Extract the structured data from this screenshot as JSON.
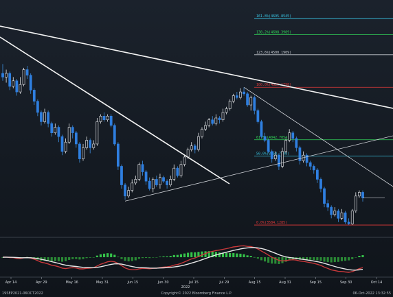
{
  "chart_data": {
    "type": "candlestick",
    "instrument": "",
    "fibonacci_levels": [
      {
        "label": "161.8%(4695.8545)",
        "price": 4695.8545,
        "color": "#38c7e6"
      },
      {
        "label": "138.2%(4608.3989)",
        "price": 4608.3989,
        "color": "#33d65a"
      },
      {
        "label": "123.6%(4500.1909)",
        "price": 4500.1909,
        "color": "#c8ccd2"
      },
      {
        "label": "100.0%(4325.1798)",
        "price": 4325.1798,
        "color": "#e23a3a"
      },
      {
        "label": "61.8%(4042.7054)",
        "price": 4042.7054,
        "color": "#33d65a"
      },
      {
        "label": "50.0%(3954.7048)",
        "price": 3954.7048,
        "color": "#38c7e6"
      },
      {
        "label": "0.0%(3584.1285)",
        "price": 3584.1285,
        "color": "#e23a3a"
      }
    ],
    "price_range": [
      3540,
      4780
    ],
    "x_ticks": [
      "Apr 14",
      "Apr 29",
      "May 16",
      "May 31",
      "Jun 15",
      "Jun 30",
      "Jul 15",
      "Jul 29",
      "Aug 15",
      "Aug 31",
      "Sep 15",
      "Sep 30",
      "Oct 14"
    ],
    "year_label": "2022",
    "candles": [
      [
        4400,
        4380,
        4450,
        4360
      ],
      [
        4380,
        4400,
        4420,
        4350
      ],
      [
        4400,
        4330,
        4410,
        4310
      ],
      [
        4330,
        4360,
        4380,
        4320
      ],
      [
        4360,
        4300,
        4370,
        4280
      ],
      [
        4300,
        4340,
        4380,
        4290
      ],
      [
        4340,
        4420,
        4430,
        4330
      ],
      [
        4420,
        4390,
        4440,
        4370
      ],
      [
        4390,
        4310,
        4400,
        4290
      ],
      [
        4310,
        4250,
        4320,
        4230
      ],
      [
        4250,
        4190,
        4260,
        4170
      ],
      [
        4190,
        4140,
        4200,
        4120
      ],
      [
        4140,
        4190,
        4210,
        4130
      ],
      [
        4190,
        4130,
        4200,
        4110
      ],
      [
        4130,
        4080,
        4140,
        4060
      ],
      [
        4080,
        4110,
        4130,
        4070
      ],
      [
        4110,
        4060,
        4120,
        4030
      ],
      [
        4060,
        3980,
        4070,
        3960
      ],
      [
        3980,
        4030,
        4050,
        3970
      ],
      [
        4030,
        4110,
        4130,
        4020
      ],
      [
        4110,
        4080,
        4120,
        4050
      ],
      [
        4080,
        4020,
        4090,
        4000
      ],
      [
        4020,
        3940,
        4030,
        3920
      ],
      [
        3940,
        4000,
        4020,
        3930
      ],
      [
        4000,
        4040,
        4060,
        3990
      ],
      [
        4040,
        4000,
        4050,
        3970
      ],
      [
        4000,
        4020,
        4040,
        3990
      ],
      [
        4020,
        4140,
        4160,
        4010
      ],
      [
        4140,
        4170,
        4180,
        4130
      ],
      [
        4170,
        4150,
        4190,
        4140
      ],
      [
        4150,
        4170,
        4180,
        4140
      ],
      [
        4170,
        4120,
        4180,
        4110
      ],
      [
        4120,
        4020,
        4130,
        4010
      ],
      [
        4020,
        3900,
        4030,
        3880
      ],
      [
        3900,
        3800,
        3910,
        3780
      ],
      [
        3800,
        3740,
        3810,
        3720
      ],
      [
        3740,
        3770,
        3790,
        3730
      ],
      [
        3770,
        3810,
        3830,
        3760
      ],
      [
        3810,
        3830,
        3850,
        3800
      ],
      [
        3830,
        3910,
        3920,
        3820
      ],
      [
        3910,
        3870,
        3930,
        3850
      ],
      [
        3870,
        3820,
        3880,
        3800
      ],
      [
        3820,
        3780,
        3840,
        3770
      ],
      [
        3780,
        3830,
        3840,
        3760
      ],
      [
        3830,
        3800,
        3850,
        3790
      ],
      [
        3800,
        3840,
        3860,
        3780
      ],
      [
        3840,
        3820,
        3850,
        3810
      ],
      [
        3820,
        3800,
        3830,
        3780
      ],
      [
        3800,
        3830,
        3850,
        3790
      ],
      [
        3830,
        3890,
        3910,
        3820
      ],
      [
        3890,
        3850,
        3900,
        3840
      ],
      [
        3850,
        3910,
        3930,
        3840
      ],
      [
        3910,
        3950,
        3960,
        3900
      ],
      [
        3950,
        3990,
        4000,
        3940
      ],
      [
        3990,
        4010,
        4030,
        3980
      ],
      [
        4010,
        3990,
        4020,
        3970
      ],
      [
        3990,
        4060,
        4080,
        3980
      ],
      [
        4060,
        4100,
        4110,
        4050
      ],
      [
        4100,
        4120,
        4140,
        4090
      ],
      [
        4120,
        4150,
        4160,
        4110
      ],
      [
        4150,
        4130,
        4170,
        4120
      ],
      [
        4130,
        4160,
        4180,
        4120
      ],
      [
        4160,
        4150,
        4170,
        4130
      ],
      [
        4150,
        4190,
        4210,
        4140
      ],
      [
        4190,
        4210,
        4220,
        4180
      ],
      [
        4210,
        4250,
        4260,
        4200
      ],
      [
        4250,
        4280,
        4290,
        4240
      ],
      [
        4280,
        4270,
        4300,
        4260
      ],
      [
        4270,
        4300,
        4320,
        4260
      ],
      [
        4300,
        4290,
        4325,
        4280
      ],
      [
        4290,
        4230,
        4300,
        4220
      ],
      [
        4230,
        4270,
        4280,
        4200
      ],
      [
        4270,
        4200,
        4280,
        4180
      ],
      [
        4200,
        4140,
        4210,
        4130
      ],
      [
        4140,
        4060,
        4150,
        4050
      ],
      [
        4060,
        4040,
        4080,
        4030
      ],
      [
        4040,
        3980,
        4050,
        3970
      ],
      [
        3980,
        3940,
        3990,
        3920
      ],
      [
        3940,
        3960,
        3980,
        3930
      ],
      [
        3960,
        3900,
        3970,
        3880
      ],
      [
        3900,
        3980,
        4000,
        3890
      ],
      [
        3980,
        4040,
        4050,
        3970
      ],
      [
        4040,
        4080,
        4100,
        4030
      ],
      [
        4080,
        4050,
        4090,
        4030
      ],
      [
        4050,
        4000,
        4060,
        3980
      ],
      [
        4000,
        3930,
        4010,
        3910
      ],
      [
        3930,
        3960,
        3980,
        3920
      ],
      [
        3960,
        3920,
        3970,
        3900
      ],
      [
        3920,
        3900,
        3930,
        3880
      ],
      [
        3900,
        3880,
        3910,
        3860
      ],
      [
        3880,
        3830,
        3890,
        3810
      ],
      [
        3830,
        3780,
        3840,
        3760
      ],
      [
        3780,
        3700,
        3790,
        3680
      ],
      [
        3700,
        3680,
        3720,
        3660
      ],
      [
        3680,
        3640,
        3690,
        3620
      ],
      [
        3640,
        3660,
        3680,
        3630
      ],
      [
        3660,
        3620,
        3670,
        3600
      ],
      [
        3620,
        3650,
        3670,
        3610
      ],
      [
        3650,
        3600,
        3660,
        3590
      ],
      [
        3600,
        3590,
        3620,
        3585
      ],
      [
        3590,
        3660,
        3670,
        3585
      ],
      [
        3660,
        3740,
        3760,
        3650
      ],
      [
        3740,
        3760,
        3770,
        3730
      ],
      [
        3760,
        3730,
        3770,
        3710
      ]
    ]
  },
  "footer": {
    "left": "19SEP2021-06OCT2022",
    "center": "Copyright© 2022 Bloomberg Finance L.P.",
    "right": "06-Oct-2022 13:32:55"
  }
}
